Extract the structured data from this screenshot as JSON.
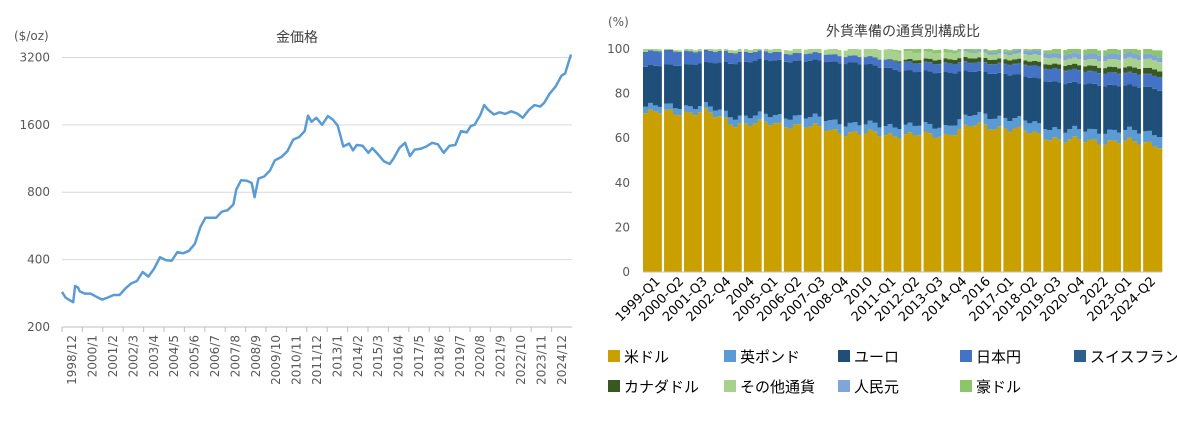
{
  "chart_data": [
    {
      "type": "line",
      "title": "金価格",
      "ylabel": "($/oz)",
      "yscale": "log",
      "ylim": [
        200,
        3600
      ],
      "yticks": [
        200,
        400,
        800,
        1600,
        3200
      ],
      "xtick_labels": [
        "1998/12",
        "2000/1",
        "2001/2",
        "2002/3",
        "2003/4",
        "2004/5",
        "2005/6",
        "2006/7",
        "2007/8",
        "2008/9",
        "2009/10",
        "2010/11",
        "2011/12",
        "2013/1",
        "2014/2",
        "2015/3",
        "2016/4",
        "2017/5",
        "2018/6",
        "2019/7",
        "2020/8",
        "2021/9",
        "2022/10",
        "2023/11",
        "2024/12"
      ],
      "series": [
        {
          "name": "金価格",
          "color": "#5B9BD5",
          "x": [
            1998.92,
            1999.1,
            1999.3,
            1999.5,
            1999.6,
            1999.75,
            1999.85,
            2000.1,
            2000.4,
            2000.7,
            2001.0,
            2001.3,
            2001.6,
            2001.9,
            2002.2,
            2002.5,
            2002.8,
            2003.1,
            2003.4,
            2003.7,
            2004.0,
            2004.3,
            2004.6,
            2004.9,
            2005.2,
            2005.5,
            2005.8,
            2006.1,
            2006.35,
            2006.6,
            2006.9,
            2007.2,
            2007.5,
            2007.8,
            2007.95,
            2008.2,
            2008.5,
            2008.75,
            2008.9,
            2009.1,
            2009.4,
            2009.7,
            2009.95,
            2010.3,
            2010.6,
            2010.9,
            2011.2,
            2011.5,
            2011.67,
            2011.85,
            2012.1,
            2012.4,
            2012.7,
            2012.95,
            2013.2,
            2013.33,
            2013.5,
            2013.8,
            2014.0,
            2014.2,
            2014.5,
            2014.8,
            2015.0,
            2015.3,
            2015.6,
            2015.9,
            2016.1,
            2016.4,
            2016.7,
            2016.95,
            2017.2,
            2017.5,
            2017.8,
            2018.1,
            2018.4,
            2018.7,
            2019.0,
            2019.3,
            2019.6,
            2019.9,
            2020.1,
            2020.3,
            2020.6,
            2020.8,
            2021.0,
            2021.3,
            2021.6,
            2021.9,
            2022.2,
            2022.5,
            2022.8,
            2023.1,
            2023.4,
            2023.7,
            2023.9,
            2024.2,
            2024.5,
            2024.8,
            2025.0,
            2025.2,
            2025.3
          ],
          "values": [
            287,
            271,
            264,
            258,
            305,
            300,
            288,
            282,
            282,
            273,
            265,
            271,
            278,
            278,
            297,
            313,
            321,
            352,
            336,
            365,
            410,
            398,
            395,
            432,
            427,
            438,
            470,
            560,
            615,
            615,
            615,
            655,
            665,
            705,
            820,
            905,
            900,
            880,
            760,
            920,
            940,
            1000,
            1110,
            1150,
            1220,
            1375,
            1410,
            1500,
            1760,
            1650,
            1720,
            1600,
            1750,
            1690,
            1590,
            1450,
            1280,
            1320,
            1230,
            1300,
            1290,
            1200,
            1260,
            1180,
            1100,
            1070,
            1130,
            1260,
            1330,
            1160,
            1240,
            1250,
            1280,
            1330,
            1310,
            1200,
            1290,
            1300,
            1500,
            1480,
            1580,
            1600,
            1770,
            1960,
            1870,
            1780,
            1820,
            1790,
            1840,
            1800,
            1720,
            1860,
            1960,
            1930,
            2000,
            2210,
            2370,
            2650,
            2720,
            3100,
            3300
          ]
        }
      ]
    },
    {
      "type": "stacked_bar",
      "title": "外貨準備の通貨別構成比",
      "ylabel": "(%)",
      "ylim": [
        0,
        100
      ],
      "yticks": [
        0,
        20,
        40,
        60,
        80,
        100
      ],
      "xtick_labels": [
        "1999-Q1",
        "2000-Q2",
        "2001-Q3",
        "2002-Q4",
        "2004",
        "2005-Q1",
        "2006-Q2",
        "2007-Q3",
        "2008-Q4",
        "2010",
        "2011-Q1",
        "2012-Q2",
        "2013-Q3",
        "2014-Q4",
        "2016",
        "2017-Q1",
        "2018-Q2",
        "2019-Q3",
        "2020-Q4",
        "2022",
        "2023-Q1",
        "2024-Q2"
      ],
      "x": [
        1999.0,
        2000.5,
        2002.0,
        2003.5,
        2005.0,
        2006.5,
        2008.0,
        2009.5,
        2011.0,
        2012.5,
        2014.0,
        2015.5,
        2017.0,
        2018.5,
        2020.0,
        2021.5,
        2023.0,
        2024.5,
        2025.0
      ],
      "series": [
        {
          "name": "米ドル",
          "color": "#C9A000",
          "values": [
            71.2,
            71.8,
            71.6,
            66.6,
            66.5,
            66.0,
            64.1,
            62.1,
            61.9,
            61.3,
            61.5,
            65.8,
            64.8,
            62.0,
            59.0,
            58.8,
            58.4,
            57.8,
            56.3
          ]
        },
        {
          "name": "英ポンド",
          "color": "#5B9BD5",
          "values": [
            2.9,
            2.8,
            2.7,
            3.3,
            3.6,
            4.0,
            4.5,
            4.1,
            4.0,
            4.3,
            4.0,
            4.8,
            4.7,
            4.6,
            4.5,
            4.8,
            4.8,
            5.0,
            5.0
          ]
        },
        {
          "name": "ユーロ",
          "color": "#1F4E79",
          "values": [
            17.9,
            18.3,
            19.3,
            24.0,
            24.8,
            24.7,
            25.9,
            27.5,
            25.8,
            24.1,
            24.2,
            19.2,
            19.6,
            20.3,
            21.2,
            20.6,
            20.2,
            19.9,
            19.8
          ]
        },
        {
          "name": "日本円",
          "color": "#4472C4",
          "values": [
            6.4,
            6.1,
            5.0,
            4.4,
            3.6,
            3.2,
            3.2,
            3.0,
            3.7,
            3.7,
            3.9,
            3.8,
            4.3,
            5.3,
            5.8,
            5.5,
            5.5,
            5.8,
            5.8
          ]
        },
        {
          "name": "スイスフラン",
          "color": "#2E5F8A",
          "values": [
            0.3,
            0.3,
            0.3,
            0.4,
            0.2,
            0.2,
            0.1,
            0.1,
            0.1,
            0.1,
            0.3,
            0.3,
            0.2,
            0.2,
            0.2,
            0.2,
            0.2,
            0.2,
            0.2
          ]
        },
        {
          "name": "カナダドル",
          "color": "#385723",
          "values": [
            0,
            0,
            0,
            0,
            0,
            0,
            0,
            0,
            0,
            1.4,
            1.8,
            1.9,
            2.0,
            1.9,
            2.1,
            2.4,
            2.4,
            2.7,
            2.7
          ]
        },
        {
          "name": "その他通貨",
          "color": "#A9D18E",
          "values": [
            1.3,
            0.7,
            1.1,
            1.3,
            1.3,
            1.9,
            2.2,
            3.2,
            4.5,
            3.3,
            2.8,
            2.5,
            2.2,
            3.0,
            2.6,
            2.9,
            3.9,
            4.1,
            4.2
          ]
        },
        {
          "name": "人民元",
          "color": "#7EA6D8",
          "values": [
            0,
            0,
            0,
            0,
            0,
            0,
            0,
            0,
            0,
            0,
            0,
            0.8,
            1.1,
            1.8,
            2.3,
            2.6,
            2.5,
            2.2,
            2.2
          ]
        },
        {
          "name": "豪ドル",
          "color": "#8DC66A",
          "values": [
            0,
            0,
            0,
            0,
            0,
            0,
            0,
            0,
            0,
            1.8,
            1.5,
            0.9,
            1.1,
            0.9,
            2.3,
            2.2,
            2.1,
            2.3,
            3.8
          ]
        }
      ]
    }
  ]
}
